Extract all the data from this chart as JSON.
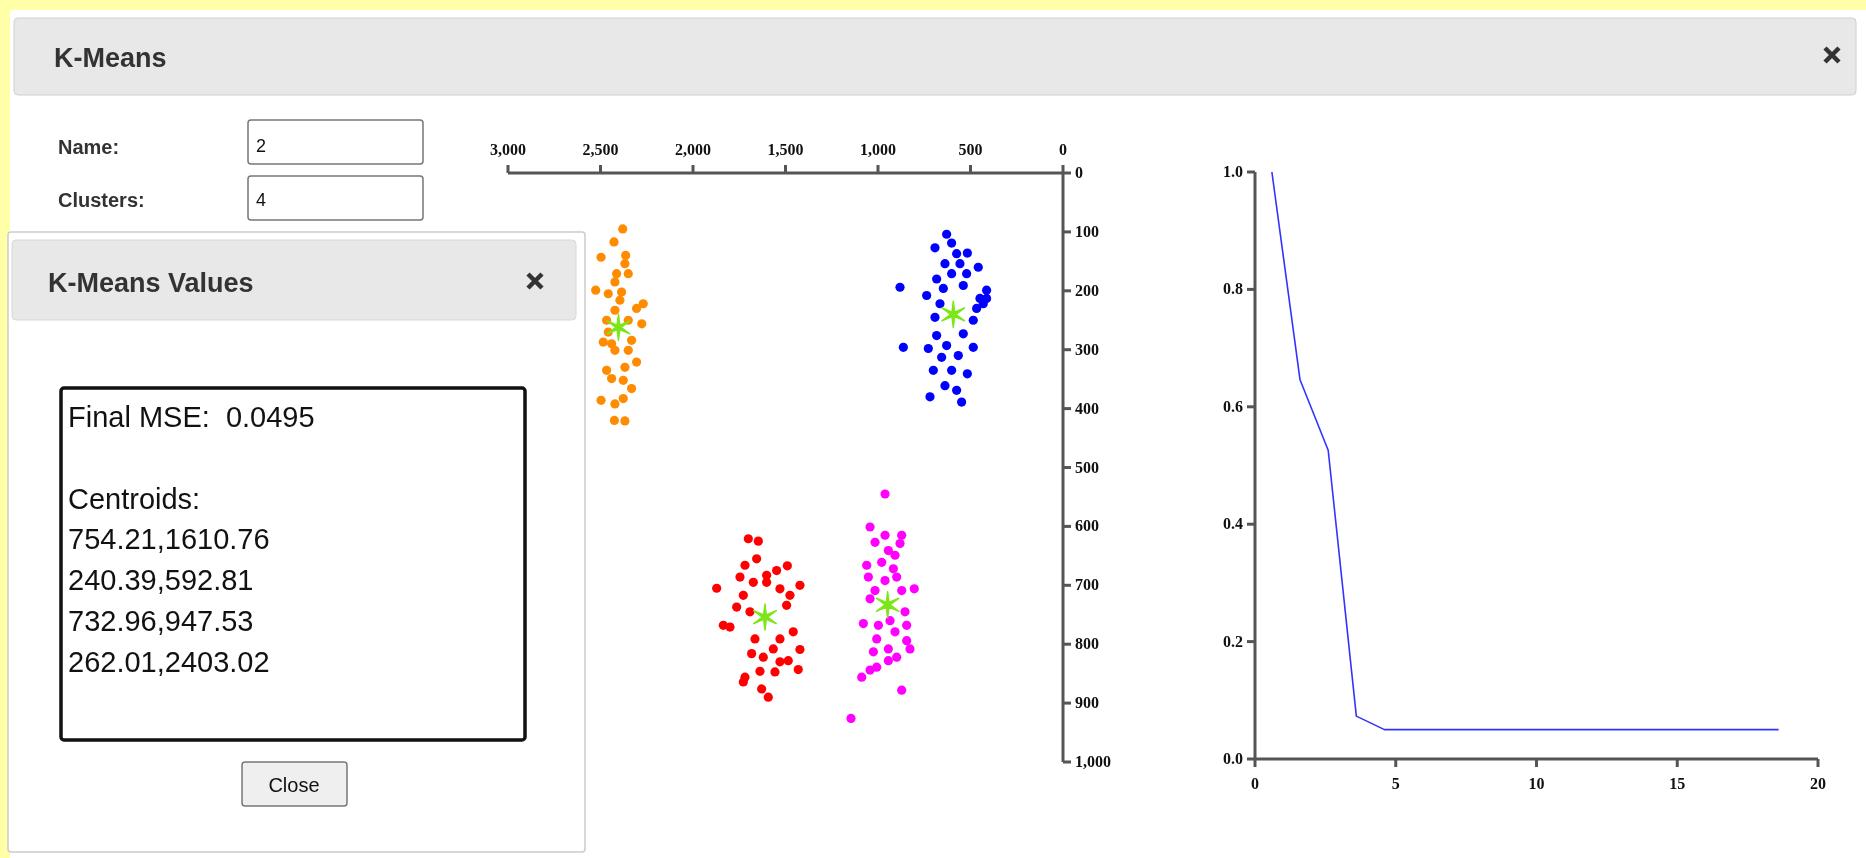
{
  "chart_data": [
    {
      "type": "other",
      "title": "K-Means",
      "annotations": [
        "Name:",
        "2",
        "Clusters:",
        "4",
        "K-Means Values",
        "Final MSE:  0.0495",
        "Centroids:",
        "754.21,1610.76",
        "240.39,592.81",
        "732.96,947.53",
        "262.01,2403.02",
        "Close"
      ]
    },
    {
      "type": "scatter",
      "marker": "circle",
      "xlim": [
        3000,
        0
      ],
      "ylim": [
        1000,
        0
      ],
      "xticks": [
        {
          "value": 3000,
          "label": "3,000"
        },
        {
          "value": 2500,
          "label": "2,500"
        },
        {
          "value": 2000,
          "label": "2,000"
        },
        {
          "value": 1500,
          "label": "1,500"
        },
        {
          "value": 1000,
          "label": "1,000"
        },
        500,
        0
      ],
      "yticks": [
        0,
        100,
        200,
        300,
        400,
        500,
        600,
        700,
        800,
        900,
        {
          "value": 1000,
          "label": "1,000"
        }
      ],
      "series": [
        {
          "color": "#ff8c00",
          "x": [
            2380,
            2427,
            2497,
            2364,
            2368,
            2413,
            2350,
            2422,
            2526,
            2458,
            2386,
            2395,
            2269,
            2305,
            2277,
            2422,
            2467,
            2350,
            2485,
            2440,
            2332,
            2422,
            2305,
            2467,
            2368,
            2440,
            2377,
            2332,
            2497,
            2422,
            2377,
            2425,
            2368,
            2413,
            2458,
            2350
          ],
          "values": [
            95,
            117,
            143,
            140,
            154,
            171,
            171,
            185,
            199,
            205,
            202,
            216,
            222,
            230,
            256,
            233,
            250,
            250,
            287,
            290,
            284,
            301,
            321,
            335,
            330,
            349,
            352,
            366,
            386,
            392,
            383,
            420,
            421,
            null,
            270,
            301
          ]
        },
        {
          "color": "#0000ff",
          "x": [
            629,
            602,
            692,
            575,
            517,
            638,
            557,
            458,
            683,
            602,
            521,
            881,
            737,
            647,
            539,
            413,
            449,
            665,
            467,
            692,
            485,
            683,
            539,
            863,
            728,
            629,
            485,
            656,
            566,
            701,
            602,
            517,
            638,
            575,
            719,
            548,
            431,
            413
          ],
          "values": [
            104,
            119,
            127,
            137,
            136,
            154,
            154,
            160,
            180,
            171,
            171,
            194,
            208,
            196,
            191,
            199,
            213,
            222,
            230,
            245,
            250,
            276,
            273,
            296,
            298,
            293,
            296,
            313,
            310,
            335,
            335,
            341,
            361,
            369,
            380,
            389,
            222,
            213
          ]
        },
        {
          "color": "#ff0000",
          "x": [
            1701,
            1647,
            1656,
            1719,
            1490,
            1548,
            1746,
            1602,
            1674,
            1872,
            1422,
            1530,
            1476,
            1728,
            1764,
            1494,
            1836,
            1800,
            1458,
            1665,
            1530,
            1566,
            1422,
            1683,
            1620,
            1530,
            1485,
            1719,
            1638,
            1557,
            1431,
            1728,
            1629,
            1593,
            1602,
            1692
          ],
          "values": [
            621,
            625,
            655,
            666,
            667,
            675,
            686,
            683,
            695,
            705,
            700,
            706,
            717,
            717,
            737,
            734,
            768,
            771,
            779,
            791,
            791,
            808,
            809,
            816,
            822,
            830,
            828,
            856,
            846,
            847,
            843,
            864,
            876,
            890,
            695,
            745
          ]
        },
        {
          "color": "#ff00ff",
          "x": [
            962,
            1043,
            962,
            872,
            1016,
            881,
            944,
            908,
            1061,
            980,
            917,
            1052,
            899,
            1016,
            872,
            804,
            1043,
            854,
            1079,
            998,
            845,
            908,
            1007,
            845,
            827,
            944,
            1025,
            899,
            944,
            1007,
            1043,
            1088,
            872,
            1146,
            962,
            935
          ],
          "values": [
            545,
            601,
            615,
            615,
            627,
            629,
            641,
            649,
            666,
            661,
            672,
            686,
            686,
            709,
            709,
            706,
            723,
            745,
            765,
            768,
            768,
            779,
            791,
            794,
            808,
            808,
            813,
            822,
            828,
            839,
            844,
            856,
            878,
            926,
            692,
            760
          ]
        },
        {
          "color": "#7ce619",
          "marker": "cross",
          "x": [
            1611,
            593,
            948,
            2403
          ],
          "values": [
            754,
            240,
            733,
            262
          ]
        }
      ]
    },
    {
      "type": "line",
      "xlim": [
        0,
        20
      ],
      "ylim": [
        0,
        1
      ],
      "xticks": [
        0,
        5,
        10,
        15,
        20
      ],
      "yticks": [
        {
          "value": 0,
          "label": "0.0"
        },
        {
          "value": 0.2,
          "label": "0.2"
        },
        {
          "value": 0.4,
          "label": "0.4"
        },
        {
          "value": 0.6,
          "label": "0.6"
        },
        {
          "value": 0.8,
          "label": "0.8"
        },
        {
          "value": 1,
          "label": "1.0"
        }
      ],
      "x": [
        0.6,
        1.6,
        2.6,
        3.6,
        4.6,
        5.6,
        6.6,
        7.6,
        8.6,
        9.6,
        10.6,
        11.6,
        12.6,
        13.6,
        14.6,
        15.6,
        16.6,
        17.6,
        18.6
      ],
      "series": [
        {
          "color": "#3333ff",
          "values": [
            1.0,
            0.646,
            0.526,
            0.073,
            0.05,
            0.05,
            0.05,
            0.05,
            0.05,
            0.05,
            0.05,
            0.05,
            0.05,
            0.05,
            0.05,
            0.05,
            0.05,
            0.05,
            0.05
          ]
        }
      ]
    }
  ]
}
